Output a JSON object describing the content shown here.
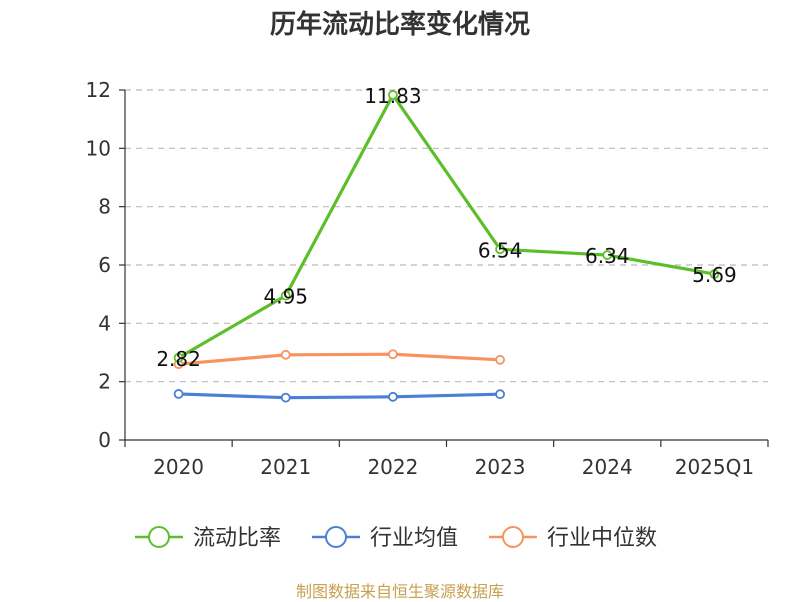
{
  "chart_data": {
    "type": "line",
    "title": "历年流动比率变化情况",
    "categories": [
      "2020",
      "2021",
      "2022",
      "2023",
      "2024",
      "2025Q1"
    ],
    "ylim": [
      0,
      12
    ],
    "yticks": [
      0,
      2,
      4,
      6,
      8,
      10,
      12
    ],
    "grid": true,
    "legend_position": "bottom",
    "series": [
      {
        "name": "流动比率",
        "color": "#5cbf2a",
        "values": [
          2.82,
          4.95,
          11.83,
          6.54,
          6.34,
          5.69
        ],
        "labels": [
          "2.82",
          "4.95",
          "11.83",
          "6.54",
          "6.34",
          "5.69"
        ]
      },
      {
        "name": "行业均值",
        "color": "#4a7fd6",
        "values": [
          1.58,
          1.45,
          1.48,
          1.57,
          null,
          null
        ]
      },
      {
        "name": "行业中位数",
        "color": "#f7945e",
        "values": [
          2.6,
          2.92,
          2.94,
          2.75,
          null,
          null
        ]
      }
    ]
  },
  "source": "制图数据来自恒生聚源数据库"
}
